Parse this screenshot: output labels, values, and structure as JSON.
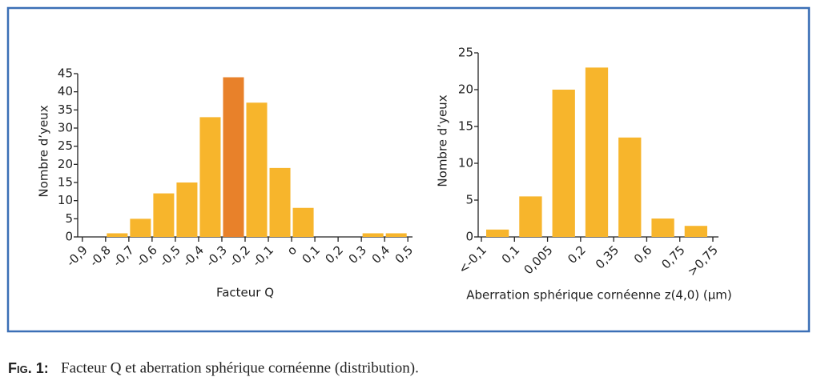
{
  "chart_data": [
    {
      "type": "histogram",
      "xlabel": "Facteur Q",
      "ylabel": "Nombre d’yeux",
      "bins": [
        -0.9,
        -0.8,
        -0.7,
        -0.6,
        -0.5,
        -0.4,
        -0.3,
        -0.2,
        -0.1,
        0,
        0.1,
        0.2,
        0.3,
        0.4,
        0.5
      ],
      "values": [
        0,
        1,
        5,
        12,
        15,
        33,
        44,
        37,
        19,
        8,
        0,
        0,
        1,
        1
      ],
      "colors": [
        "#f7b52c",
        "#f7b52c",
        "#f7b52c",
        "#f7b52c",
        "#f7b52c",
        "#f7b52c",
        "#e8812a",
        "#f7b52c",
        "#f7b52c",
        "#f7b52c",
        "#f7b52c",
        "#f7b52c",
        "#f7b52c",
        "#f7b52c"
      ],
      "xlim": [
        -0.92,
        0.52
      ],
      "xticks": [
        {
          "value": -0.9,
          "label": "-0,9"
        },
        {
          "value": -0.8,
          "label": "-0,8"
        },
        {
          "value": -0.7,
          "label": "-0,7"
        },
        {
          "value": -0.6,
          "label": "-0,6"
        },
        {
          "value": -0.5,
          "label": "-0,5"
        },
        {
          "value": -0.4,
          "label": "-0,4"
        },
        {
          "value": -0.3,
          "label": "-0,3"
        },
        {
          "value": -0.2,
          "label": "-0,2"
        },
        {
          "value": -0.1,
          "label": "-0,1"
        },
        {
          "value": 0,
          "label": "o"
        },
        {
          "value": 0.1,
          "label": "0,1"
        },
        {
          "value": 0.2,
          "label": "0,2"
        },
        {
          "value": 0.3,
          "label": "0,3"
        },
        {
          "value": 0.4,
          "label": "0,4"
        },
        {
          "value": 0.5,
          "label": "0,5"
        }
      ],
      "ylim": [
        0,
        45
      ],
      "yticks": [
        0,
        5,
        10,
        15,
        20,
        25,
        30,
        35,
        40,
        45
      ]
    },
    {
      "type": "category-histogram",
      "xlabel": "Aberration sphérique cornéenne z(4,0) (µm)",
      "ylabel": "Nombre d’yeux",
      "bins": [
        "<-0,1",
        "0,1",
        "0,005",
        "0,2",
        "0,35",
        "0,6",
        "0,75",
        ">0,75"
      ],
      "values": [
        1,
        5.5,
        20,
        23,
        13.5,
        2.5,
        1.5
      ],
      "color": "#f7b52c",
      "ylim": [
        0,
        25
      ],
      "yticks": [
        0,
        5,
        10,
        15,
        20,
        25
      ]
    }
  ],
  "caption": {
    "label": "Fig. 1:",
    "text": "Facteur Q et aberration sphérique cornéenne (distribution)."
  }
}
